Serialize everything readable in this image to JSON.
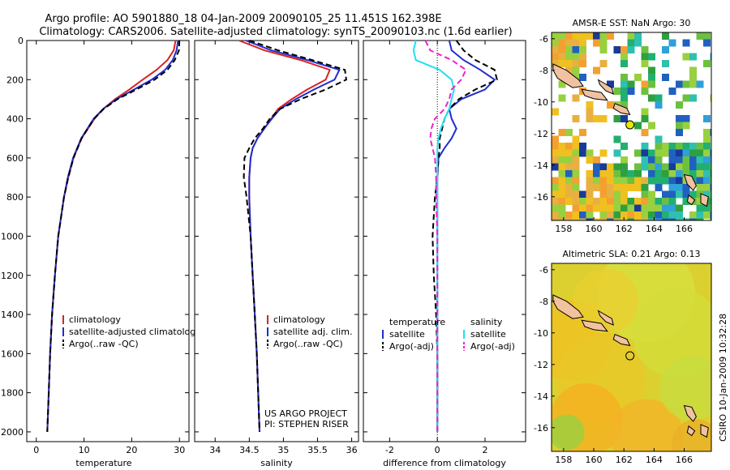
{
  "header": {
    "line1": "Argo profile: AO 5901880_18 04-Jan-2009 20090105_25 11.451S 162.398E",
    "line2": "Climatology: CARS2006. Satellite-adjusted climatology: synTS_20090103.nc (1.6d earlier)"
  },
  "side_label": "CSIRO 10-Jan-2009 10:32:28",
  "colors": {
    "climatology": "#dd2222",
    "satellite": "#1f2ecc",
    "argo": "#000000",
    "sal_satellite": "#22e0ee",
    "sal_argo": "#ee22cc",
    "land": "#f2c1a0",
    "float_marker": "#e8e800"
  },
  "chart_data": [
    {
      "id": "temperature",
      "type": "line",
      "xlabel": "temperature",
      "ylabel": "",
      "xlim": [
        -2,
        32
      ],
      "ylim": [
        2050,
        0
      ],
      "xticks": [
        0,
        10,
        20,
        30
      ],
      "yticks": [
        0,
        200,
        400,
        600,
        800,
        1000,
        1200,
        1400,
        1600,
        1800,
        2000
      ],
      "depth": [
        0,
        50,
        100,
        150,
        200,
        250,
        300,
        350,
        400,
        500,
        600,
        700,
        800,
        1000,
        1200,
        1400,
        1600,
        1800,
        2000
      ],
      "series": [
        {
          "name": "climatology",
          "style": "solid",
          "color_key": "climatology",
          "values": [
            29.2,
            28.8,
            27.5,
            25.2,
            22.3,
            19.5,
            16.5,
            14.0,
            12.2,
            9.5,
            7.8,
            6.7,
            5.8,
            4.6,
            3.9,
            3.3,
            2.9,
            2.6,
            2.3
          ]
        },
        {
          "name": "satellite-adjusted climatology",
          "style": "solid",
          "color_key": "satellite",
          "values": [
            29.7,
            29.4,
            28.6,
            27.0,
            24.2,
            20.5,
            16.8,
            14.0,
            12.0,
            9.4,
            7.7,
            6.6,
            5.8,
            4.6,
            3.9,
            3.3,
            2.9,
            2.6,
            2.3
          ]
        },
        {
          "name": "Argo(..raw -QC)",
          "style": "dashed",
          "color_key": "argo",
          "values": [
            30.0,
            29.9,
            29.0,
            27.5,
            24.8,
            21.0,
            17.0,
            14.1,
            12.1,
            9.5,
            7.8,
            6.7,
            5.8,
            4.6,
            3.9,
            3.3,
            2.9,
            2.6,
            2.3
          ]
        }
      ],
      "legend": [
        "climatology",
        "satellite-adjusted climatology",
        "Argo(..raw -QC)"
      ],
      "legend_position": "lower-right"
    },
    {
      "id": "salinity",
      "type": "line",
      "xlabel": "salinity",
      "ylabel": "",
      "xlim": [
        33.7,
        36.1
      ],
      "ylim": [
        2050,
        0
      ],
      "xticks": [
        34,
        34.5,
        35,
        35.5,
        36
      ],
      "yticks": [
        0,
        200,
        400,
        600,
        800,
        1000,
        1200,
        1400,
        1600,
        1800,
        2000
      ],
      "depth": [
        0,
        50,
        100,
        150,
        200,
        250,
        300,
        350,
        400,
        450,
        500,
        550,
        600,
        700,
        800,
        1000,
        1200,
        1400,
        1600,
        1800,
        2000
      ],
      "series": [
        {
          "name": "climatology",
          "style": "solid",
          "color_key": "climatology",
          "values": [
            34.35,
            34.72,
            35.25,
            35.68,
            35.62,
            35.35,
            35.12,
            34.92,
            34.82,
            34.72,
            34.62,
            34.55,
            34.52,
            34.5,
            34.5,
            34.52,
            34.55,
            34.58,
            34.61,
            34.63,
            34.65
          ]
        },
        {
          "name": "satellite adj. clim.",
          "style": "solid",
          "color_key": "satellite",
          "values": [
            34.45,
            34.82,
            35.35,
            35.82,
            35.75,
            35.45,
            35.18,
            34.95,
            34.83,
            34.72,
            34.62,
            34.55,
            34.52,
            34.5,
            34.5,
            34.52,
            34.55,
            34.58,
            34.61,
            34.63,
            34.65
          ]
        },
        {
          "name": "Argo(..raw -QC)",
          "style": "dashed",
          "color_key": "argo",
          "values": [
            34.5,
            34.92,
            35.42,
            35.9,
            35.92,
            35.62,
            35.25,
            34.95,
            34.8,
            34.7,
            34.58,
            34.5,
            34.43,
            34.42,
            34.46,
            34.52,
            34.55,
            34.58,
            34.61,
            34.63,
            34.65
          ]
        }
      ],
      "legend": [
        "climatology",
        "satellite adj. clim.",
        "Argo(..raw -QC)"
      ],
      "legend_position": "lower-right",
      "annotation": [
        "US ARGO PROJECT",
        "PI: STEPHEN RISER"
      ]
    },
    {
      "id": "difference",
      "type": "line",
      "xlabel": "difference from climatology",
      "ylabel": "",
      "xlim": [
        -3.1,
        3.7
      ],
      "ylim": [
        2050,
        0
      ],
      "xticks": [
        -2,
        0,
        2
      ],
      "yticks": [
        0,
        200,
        400,
        600,
        800,
        1000,
        1200,
        1400,
        1600,
        1800,
        2000
      ],
      "zero_line": true,
      "depth": [
        0,
        50,
        100,
        150,
        200,
        250,
        300,
        350,
        400,
        450,
        500,
        550,
        600,
        700,
        800,
        1000,
        1200,
        1400,
        1600,
        1800,
        2000
      ],
      "series": [
        {
          "name": "temperature satellite",
          "style": "solid",
          "color_key": "satellite",
          "values": [
            0.5,
            0.6,
            1.1,
            1.8,
            2.4,
            2.0,
            1.0,
            0.5,
            0.6,
            0.8,
            0.6,
            0.3,
            0.05,
            0.0,
            0.0,
            0.0,
            0.0,
            0.0,
            0.0,
            0.0,
            0.0
          ]
        },
        {
          "name": "temperature Argo(-adj)",
          "style": "dashed",
          "color_key": "argo",
          "values": [
            0.8,
            1.1,
            1.6,
            2.4,
            2.5,
            1.6,
            0.9,
            0.5,
            0.3,
            0.2,
            0.1,
            0.1,
            0.05,
            0.0,
            -0.1,
            -0.2,
            -0.15,
            -0.05,
            0.0,
            0.0,
            0.0
          ]
        },
        {
          "name": "salinity satellite",
          "style": "solid",
          "color_key": "sal_satellite",
          "values": [
            -0.9,
            -1.0,
            -0.9,
            0.1,
            0.6,
            0.7,
            0.6,
            0.5,
            0.3,
            0.15,
            0.05,
            0.0,
            0.0,
            0.0,
            0.0,
            0.0,
            0.0,
            0.0,
            0.0,
            0.0,
            0.0
          ]
        },
        {
          "name": "salinity Argo(-adj)",
          "style": "dashed",
          "color_key": "sal_argo",
          "values": [
            -0.5,
            -0.3,
            0.6,
            1.2,
            1.0,
            0.6,
            0.5,
            0.3,
            -0.1,
            -0.25,
            -0.3,
            -0.2,
            -0.1,
            -0.05,
            -0.05,
            0.0,
            0.0,
            0.0,
            0.0,
            0.0,
            0.0
          ]
        }
      ],
      "legend_groups": [
        {
          "title": "temperature",
          "items": [
            "satellite",
            "Argo(-adj)"
          ],
          "colors": [
            "satellite",
            "argo"
          ],
          "styles": [
            "solid",
            "dashed"
          ]
        },
        {
          "title": "salinity",
          "items": [
            "satellite",
            "Argo(-adj)"
          ],
          "colors": [
            "sal_satellite",
            "sal_argo"
          ],
          "styles": [
            "solid",
            "dashed"
          ]
        }
      ]
    },
    {
      "id": "sst_map",
      "type": "heatmap",
      "title": "AMSR-E SST: NaN Argo: 30",
      "xlim": [
        157.2,
        167.8
      ],
      "ylim": [
        -17.5,
        -5.6
      ],
      "xticks": [
        158,
        160,
        162,
        164,
        166
      ],
      "yticks": [
        -6,
        -8,
        -10,
        -12,
        -14,
        -16
      ],
      "float_position": [
        162.4,
        -11.45
      ]
    },
    {
      "id": "sla_map",
      "type": "heatmap",
      "title": "Altimetric SLA: 0.21 Argo: 0.13",
      "xlim": [
        157.2,
        167.8
      ],
      "ylim": [
        -17.5,
        -5.6
      ],
      "xticks": [
        158,
        160,
        162,
        164,
        166
      ],
      "yticks": [
        -6,
        -8,
        -10,
        -12,
        -14,
        -16
      ],
      "float_position": [
        162.4,
        -11.45
      ]
    }
  ]
}
